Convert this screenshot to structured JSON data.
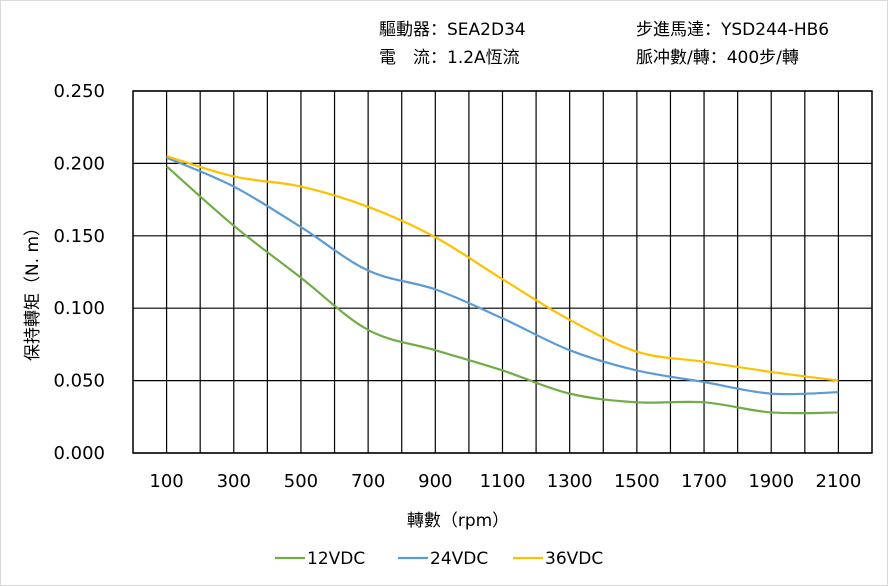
{
  "header": {
    "driver": "驅動器：SEA2D34",
    "motor": "步進馬達：YSD244-HB6",
    "current": "電　流：1.2A恆流",
    "pulses": "脈冲數/轉：400步/轉"
  },
  "chart_data": {
    "type": "line",
    "title": "",
    "xlabel": "轉數（rpm）",
    "ylabel": "保持轉矩（N. m）",
    "xlim": [
      0,
      2200
    ],
    "ylim": [
      0,
      0.25
    ],
    "grid": true,
    "legend": "bottom",
    "x_ticks": [
      "100",
      "300",
      "500",
      "700",
      "900",
      "1100",
      "1300",
      "1500",
      "1700",
      "1900",
      "2100"
    ],
    "y_ticks": [
      "0.000",
      "0.050",
      "0.100",
      "0.150",
      "0.200",
      "0.250"
    ],
    "x": [
      100,
      300,
      500,
      700,
      900,
      1100,
      1300,
      1500,
      1700,
      1900,
      2100
    ],
    "series": [
      {
        "name": "12VDC",
        "color": "#70ad47",
        "values": [
          0.198,
          0.157,
          0.121,
          0.085,
          0.071,
          0.057,
          0.041,
          0.035,
          0.035,
          0.028,
          0.028
        ]
      },
      {
        "name": "24VDC",
        "color": "#5b9bd5",
        "values": [
          0.204,
          0.184,
          0.156,
          0.126,
          0.113,
          0.093,
          0.071,
          0.057,
          0.049,
          0.041,
          0.042
        ]
      },
      {
        "name": "36VDC",
        "color": "#ffc000",
        "values": [
          0.205,
          0.191,
          0.184,
          0.17,
          0.149,
          0.12,
          0.092,
          0.07,
          0.063,
          0.056,
          0.05
        ]
      }
    ]
  }
}
